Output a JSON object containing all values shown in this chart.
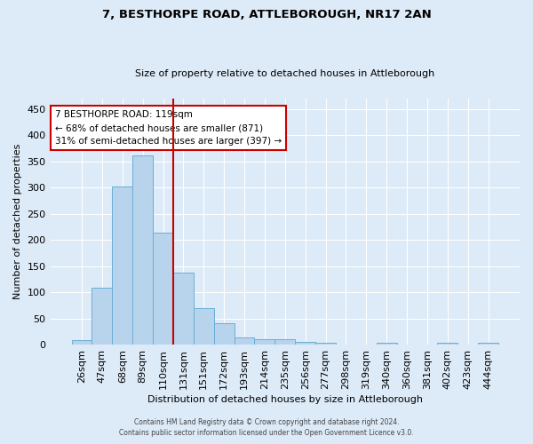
{
  "title": "7, BESTHORPE ROAD, ATTLEBOROUGH, NR17 2AN",
  "subtitle": "Size of property relative to detached houses in Attleborough",
  "xlabel": "Distribution of detached houses by size in Attleborough",
  "ylabel": "Number of detached properties",
  "footnote1": "Contains HM Land Registry data © Crown copyright and database right 2024.",
  "footnote2": "Contains public sector information licensed under the Open Government Licence v3.0.",
  "bar_labels": [
    "26sqm",
    "47sqm",
    "68sqm",
    "89sqm",
    "110sqm",
    "131sqm",
    "151sqm",
    "172sqm",
    "193sqm",
    "214sqm",
    "235sqm",
    "256sqm",
    "277sqm",
    "298sqm",
    "319sqm",
    "340sqm",
    "360sqm",
    "381sqm",
    "402sqm",
    "423sqm",
    "444sqm"
  ],
  "bar_values": [
    8,
    109,
    302,
    362,
    214,
    138,
    70,
    40,
    14,
    11,
    10,
    6,
    4,
    0,
    0,
    3,
    0,
    0,
    4,
    0,
    3
  ],
  "bar_color": "#b8d4ec",
  "bar_edgecolor": "#6aaed6",
  "vline_x": 4.5,
  "vline_color": "#cc0000",
  "annotation_title": "7 BESTHORPE ROAD: 119sqm",
  "annotation_line1": "← 68% of detached houses are smaller (871)",
  "annotation_line2": "31% of semi-detached houses are larger (397) →",
  "annotation_box_facecolor": "#ffffff",
  "annotation_box_edgecolor": "#cc0000",
  "ylim": [
    0,
    470
  ],
  "yticks": [
    0,
    50,
    100,
    150,
    200,
    250,
    300,
    350,
    400,
    450
  ],
  "background_color": "#ddeaf7",
  "axes_background": "#ddeaf7",
  "grid_color": "#ffffff"
}
